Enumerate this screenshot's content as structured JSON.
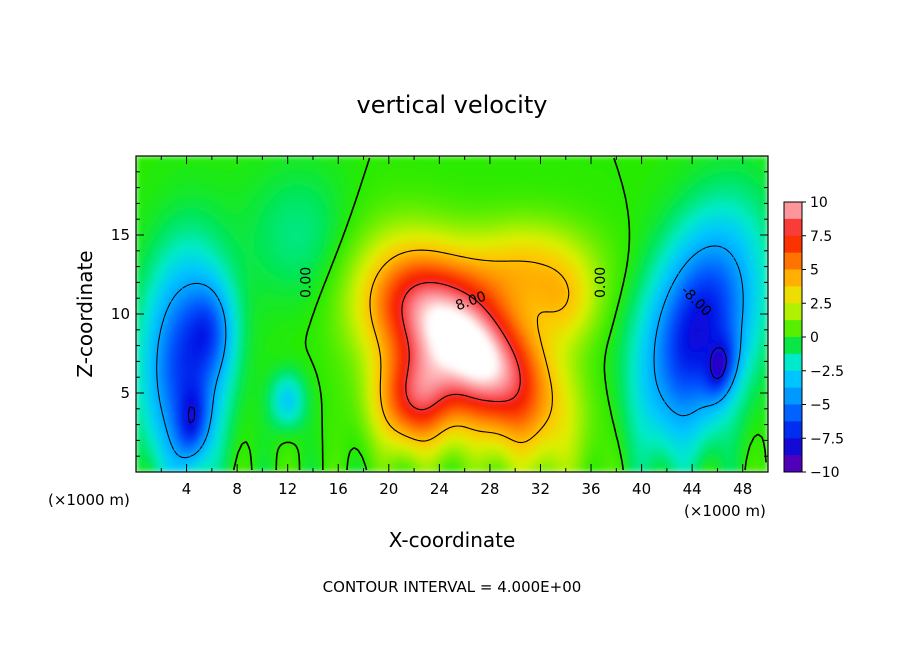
{
  "chart_data": {
    "type": "heatmap",
    "title": "vertical velocity",
    "xlabel": "X-coordinate",
    "ylabel": "Z-coordinate",
    "x_unit": "(×1000 m)",
    "x_unit_right": "(×1000 m)",
    "xlim": [
      0,
      50
    ],
    "ylim": [
      0,
      20
    ],
    "x_ticks": [
      4,
      8,
      12,
      16,
      20,
      24,
      28,
      32,
      36,
      40,
      44,
      48
    ],
    "x_tick_labels": [
      "4",
      "8",
      "12",
      "16",
      "20",
      "24",
      "28",
      "32",
      "36",
      "40",
      "44",
      "48"
    ],
    "y_ticks": [
      5,
      10,
      15
    ],
    "y_tick_labels": [
      "5",
      "10",
      "15"
    ],
    "footer": "CONTOUR INTERVAL = 4.000E+00",
    "contour_labels": [
      "0.00",
      "0.00",
      "8.00",
      "-8.00"
    ],
    "colorbar": {
      "range": [
        -10,
        10
      ],
      "ticks": [
        10,
        7.5,
        5,
        2.5,
        0,
        -2.5,
        -5,
        -7.5,
        -10
      ],
      "tick_labels": [
        "10",
        "7.5",
        "5",
        "2.5",
        "0",
        "−2.5",
        "−5",
        "−7.5",
        "−10"
      ]
    },
    "features": [
      {
        "kind": "updraft",
        "x": 27,
        "z": 7.5,
        "peak": 11,
        "sx": 4.2,
        "sz": 3.2,
        "tilt": -0.5
      },
      {
        "kind": "updraft",
        "x": 22,
        "z": 4.5,
        "peak": 7,
        "sx": 2.2,
        "sz": 2.2,
        "tilt": 0
      },
      {
        "kind": "updraft",
        "x": 21,
        "z": 10.5,
        "peak": 3.8,
        "sx": 3.0,
        "sz": 2.6,
        "tilt": 0
      },
      {
        "kind": "updraft",
        "x": 31,
        "z": 13,
        "peak": 3.5,
        "sx": 3.5,
        "sz": 2.0,
        "tilt": 0
      },
      {
        "kind": "updraft",
        "x": 34,
        "z": 10.5,
        "peak": 2.5,
        "sx": 1.8,
        "sz": 1.8,
        "tilt": 0
      },
      {
        "kind": "downdraft",
        "x": 44.5,
        "z": 9,
        "peak": -8,
        "sx": 3.0,
        "sz": 4.2,
        "tilt": 0.55
      },
      {
        "kind": "downdraft",
        "x": 46.3,
        "z": 6.5,
        "peak": -4,
        "sx": 0.8,
        "sz": 1.2,
        "tilt": 0.5
      },
      {
        "kind": "downdraft",
        "x": 3.8,
        "z": 7,
        "peak": -6.5,
        "sx": 2.2,
        "sz": 4.5,
        "tilt": 0.2
      },
      {
        "kind": "downdraft",
        "x": 4.5,
        "z": 3,
        "peak": -4,
        "sx": 0.9,
        "sz": 1.6,
        "tilt": 0.3
      },
      {
        "kind": "downdraft",
        "x": 6,
        "z": 9,
        "peak": -3,
        "sx": 1.2,
        "sz": 2.0,
        "tilt": 0
      },
      {
        "kind": "downdraft",
        "x": 12,
        "z": 4.5,
        "peak": -3,
        "sx": 0.9,
        "sz": 1.2,
        "tilt": 0
      },
      {
        "kind": "downdraft",
        "x": 13,
        "z": 15,
        "peak": -1.2,
        "sx": 3.0,
        "sz": 3.0,
        "tilt": 0
      }
    ]
  }
}
